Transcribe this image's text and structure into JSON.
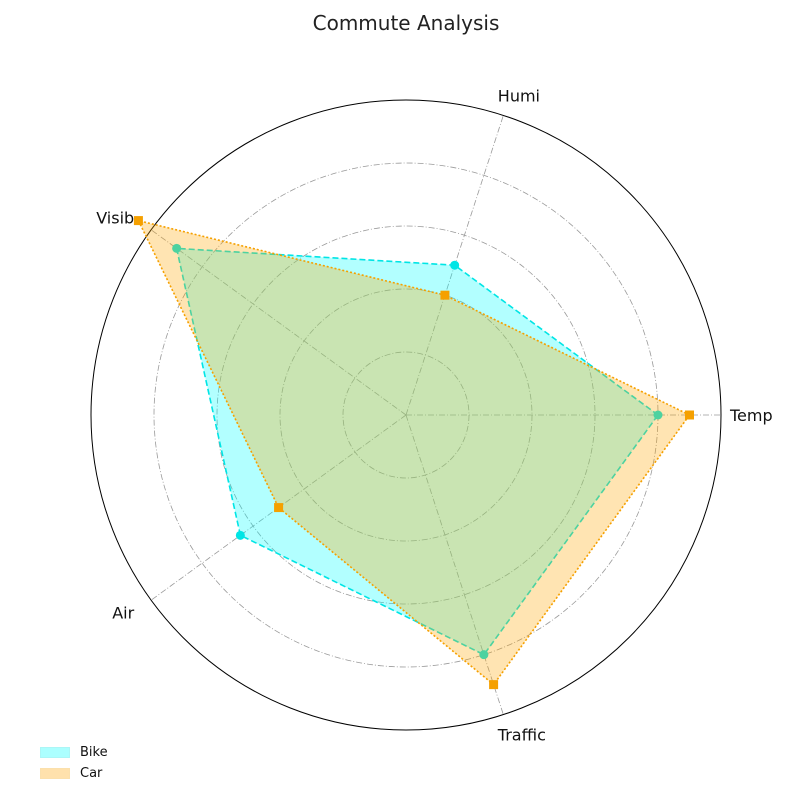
{
  "chart_data": {
    "type": "radar",
    "title": "Commute Analysis",
    "categories": [
      "Temp",
      "Humi",
      "Visib",
      "Air",
      "Traffic"
    ],
    "rmax": 10,
    "rings": [
      2,
      4,
      6,
      8
    ],
    "grid": true,
    "legend_position": "bottom-left",
    "series": [
      {
        "name": "Bike",
        "values": [
          8.0,
          5.0,
          9.0,
          6.5,
          8.0
        ],
        "line_color": "#00e5e5",
        "fill_color": "#00ffff",
        "line_style": "dashed",
        "marker": "circle"
      },
      {
        "name": "Car",
        "values": [
          9.0,
          4.0,
          10.5,
          5.0,
          9.0
        ],
        "line_color": "#f5a000",
        "fill_color": "#ffa500",
        "line_style": "dotted",
        "marker": "square"
      }
    ]
  }
}
